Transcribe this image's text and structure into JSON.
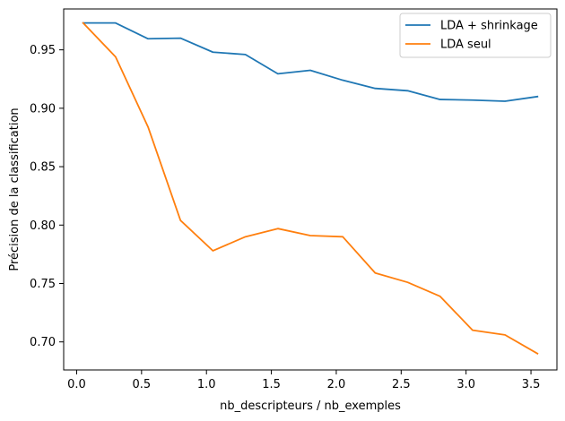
{
  "chart_data": {
    "type": "line",
    "title": "",
    "xlabel": "nb_descripteurs / nb_exemples",
    "ylabel": "Précision de la classification",
    "xlim": [
      -0.1,
      3.7
    ],
    "ylim": [
      0.676,
      0.985
    ],
    "xticks": [
      0.0,
      0.5,
      1.0,
      1.5,
      2.0,
      2.5,
      3.0,
      3.5
    ],
    "xtick_labels": [
      "0.0",
      "0.5",
      "1.0",
      "1.5",
      "2.0",
      "2.5",
      "3.0",
      "3.5"
    ],
    "yticks": [
      0.7,
      0.75,
      0.8,
      0.85,
      0.9,
      0.95
    ],
    "ytick_labels": [
      "0.70",
      "0.75",
      "0.80",
      "0.85",
      "0.90",
      "0.95"
    ],
    "grid": false,
    "legend_position": "top-right",
    "x": [
      0.05,
      0.3,
      0.55,
      0.8,
      1.05,
      1.3,
      1.55,
      1.8,
      2.05,
      2.3,
      2.55,
      2.8,
      3.05,
      3.3,
      3.55
    ],
    "series": [
      {
        "name": "LDA + shrinkage",
        "color": "#1f77b4",
        "values": [
          0.973,
          0.973,
          0.9595,
          0.96,
          0.948,
          0.946,
          0.9295,
          0.9325,
          0.924,
          0.917,
          0.915,
          0.9075,
          0.907,
          0.906,
          0.91
        ]
      },
      {
        "name": "LDA seul",
        "color": "#ff7f0e",
        "values": [
          0.973,
          0.944,
          0.884,
          0.804,
          0.778,
          0.79,
          0.797,
          0.791,
          0.79,
          0.759,
          0.751,
          0.739,
          0.71,
          0.706,
          0.69
        ]
      }
    ]
  }
}
